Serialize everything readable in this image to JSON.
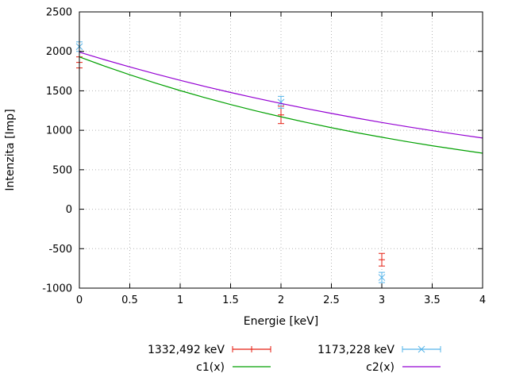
{
  "page": {
    "background": "#ffffff"
  },
  "chart_data": {
    "type": "line",
    "title": "",
    "xlabel": "Energie [keV]",
    "ylabel": "Intenzita [Imp]",
    "xlim": [
      0,
      4
    ],
    "ylim": [
      -1000,
      2500
    ],
    "xticks": [
      0,
      0.5,
      1,
      1.5,
      2,
      2.5,
      3,
      3.5,
      4
    ],
    "yticks": [
      -1000,
      -500,
      0,
      500,
      1000,
      1500,
      2000,
      2500
    ],
    "grid": true,
    "legend_position": "below-center",
    "series": [
      {
        "name": "1332,492 keV",
        "type": "errorbars",
        "marker": "plus",
        "color": "#e51e10",
        "points": [
          {
            "x": 0,
            "y": 1860,
            "err": 70
          },
          {
            "x": 2,
            "y": 1195,
            "err": 110
          },
          {
            "x": 3,
            "y": -640,
            "err": 80
          }
        ]
      },
      {
        "name": "1173,228 keV",
        "type": "errorbars",
        "marker": "x",
        "color": "#56b4e9",
        "points": [
          {
            "x": 0,
            "y": 2060,
            "err": 60
          },
          {
            "x": 2,
            "y": 1355,
            "err": 75
          },
          {
            "x": 3,
            "y": -865,
            "err": 65
          }
        ]
      },
      {
        "name": "c1(x)",
        "type": "curve",
        "color": "#00a000",
        "x": [
          0,
          0.25,
          0.5,
          0.75,
          1,
          1.25,
          1.5,
          1.75,
          2,
          2.25,
          2.5,
          2.75,
          3,
          3.25,
          3.5,
          3.75,
          4
        ],
        "y": [
          1930,
          1813,
          1703,
          1600,
          1503,
          1412,
          1326,
          1246,
          1171,
          1100,
          1033,
          970,
          912,
          856,
          804,
          756,
          710
        ]
      },
      {
        "name": "c2(x)",
        "type": "curve",
        "color": "#9400d3",
        "x": [
          0,
          0.25,
          0.5,
          0.75,
          1,
          1.25,
          1.5,
          1.75,
          2,
          2.25,
          2.5,
          2.75,
          3,
          3.25,
          3.5,
          3.75,
          4
        ],
        "y": [
          1990,
          1894,
          1803,
          1716,
          1633,
          1554,
          1479,
          1408,
          1340,
          1275,
          1214,
          1155,
          1099,
          1046,
          996,
          948,
          902
        ]
      }
    ]
  }
}
